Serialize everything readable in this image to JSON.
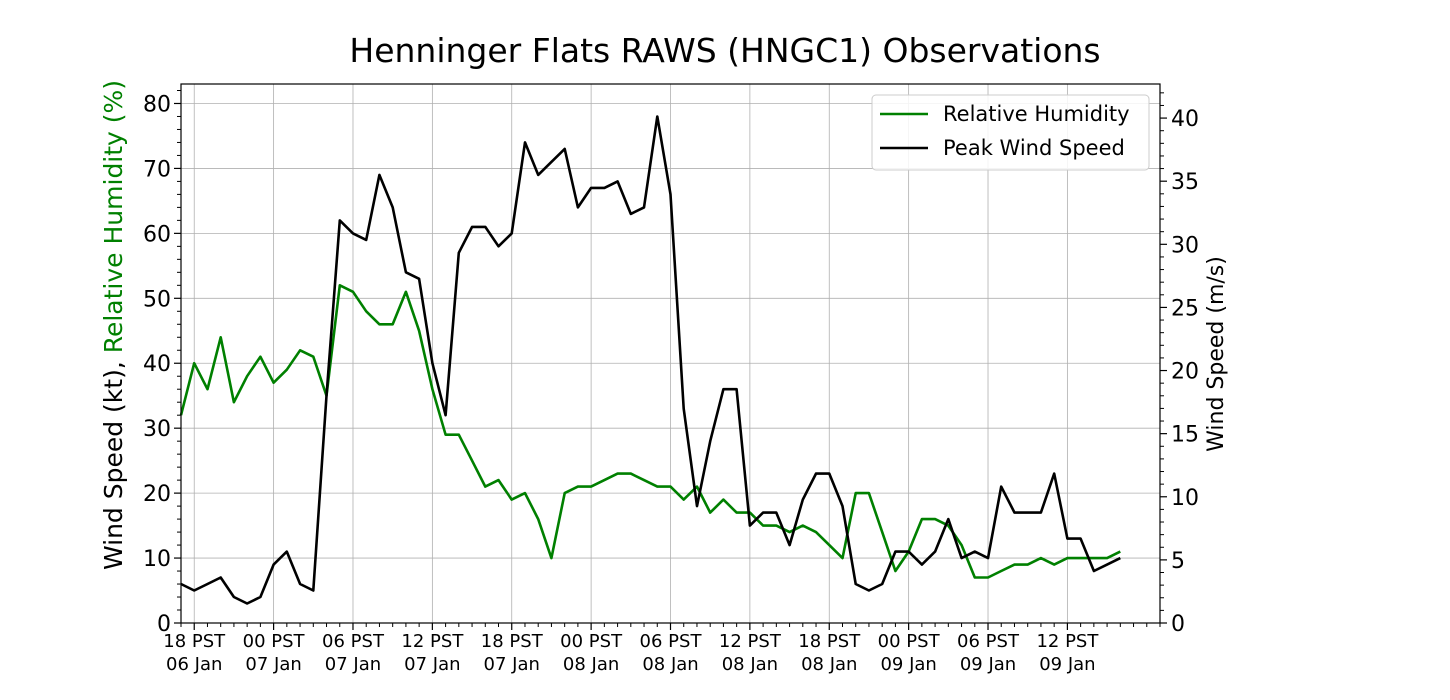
{
  "chart_data": {
    "type": "line",
    "title": "Henninger Flats RAWS (HNGC1) Observations",
    "ylabel_left_prefix": "Wind Speed (kt), ",
    "ylabel_left_colored": "Relative Humidity (%)",
    "ylabel_right": "Wind Speed (m/s)",
    "ylim": [
      0,
      83
    ],
    "y_ticks": [
      0,
      10,
      20,
      30,
      40,
      50,
      60,
      70,
      80
    ],
    "ylim_right_ms": [
      0,
      42.7
    ],
    "y_ticks_right": [
      0,
      5,
      10,
      15,
      20,
      25,
      30,
      35,
      40
    ],
    "x_unit": "hours since 18 PST 06 Jan",
    "xlim": [
      -1,
      73
    ],
    "x_ticks": [
      {
        "x": 0,
        "line1": "18 PST",
        "line2": "06 Jan"
      },
      {
        "x": 6,
        "line1": "00 PST",
        "line2": "07 Jan"
      },
      {
        "x": 12,
        "line1": "06 PST",
        "line2": "07 Jan"
      },
      {
        "x": 18,
        "line1": "12 PST",
        "line2": "07 Jan"
      },
      {
        "x": 24,
        "line1": "18 PST",
        "line2": "07 Jan"
      },
      {
        "x": 30,
        "line1": "00 PST",
        "line2": "08 Jan"
      },
      {
        "x": 36,
        "line1": "06 PST",
        "line2": "08 Jan"
      },
      {
        "x": 42,
        "line1": "12 PST",
        "line2": "08 Jan"
      },
      {
        "x": 48,
        "line1": "18 PST",
        "line2": "08 Jan"
      },
      {
        "x": 54,
        "line1": "00 PST",
        "line2": "09 Jan"
      },
      {
        "x": 60,
        "line1": "06 PST",
        "line2": "09 Jan"
      },
      {
        "x": 66,
        "line1": "12 PST",
        "line2": "09 Jan"
      }
    ],
    "grid": true,
    "legend_position": "top-right",
    "series": [
      {
        "name": "Relative Humidity",
        "color": "#008000",
        "values": [
          [
            -1,
            32
          ],
          [
            0,
            40
          ],
          [
            1,
            36
          ],
          [
            2,
            44
          ],
          [
            3,
            34
          ],
          [
            4,
            38
          ],
          [
            5,
            41
          ],
          [
            6,
            37
          ],
          [
            7,
            39
          ],
          [
            8,
            42
          ],
          [
            9,
            41
          ],
          [
            10,
            35
          ],
          [
            11,
            52
          ],
          [
            12,
            51
          ],
          [
            13,
            48
          ],
          [
            14,
            46
          ],
          [
            15,
            46
          ],
          [
            16,
            51
          ],
          [
            17,
            45
          ],
          [
            18,
            36
          ],
          [
            19,
            29
          ],
          [
            20,
            29
          ],
          [
            21,
            25
          ],
          [
            22,
            21
          ],
          [
            23,
            22
          ],
          [
            24,
            19
          ],
          [
            25,
            20
          ],
          [
            26,
            16
          ],
          [
            27,
            10
          ],
          [
            28,
            20
          ],
          [
            29,
            21
          ],
          [
            30,
            21
          ],
          [
            31,
            22
          ],
          [
            32,
            23
          ],
          [
            33,
            23
          ],
          [
            34,
            22
          ],
          [
            35,
            21
          ],
          [
            36,
            21
          ],
          [
            37,
            19
          ],
          [
            38,
            21
          ],
          [
            39,
            17
          ],
          [
            40,
            19
          ],
          [
            41,
            17
          ],
          [
            42,
            17
          ],
          [
            43,
            15
          ],
          [
            44,
            15
          ],
          [
            45,
            14
          ],
          [
            46,
            15
          ],
          [
            47,
            14
          ],
          [
            48,
            12
          ],
          [
            49,
            10
          ],
          [
            50,
            20
          ],
          [
            51,
            20
          ],
          [
            52,
            14
          ],
          [
            53,
            8
          ],
          [
            54,
            11
          ],
          [
            55,
            16
          ],
          [
            56,
            16
          ],
          [
            57,
            15
          ],
          [
            58,
            12
          ],
          [
            59,
            7
          ],
          [
            60,
            7
          ],
          [
            61,
            8
          ],
          [
            62,
            9
          ],
          [
            63,
            9
          ],
          [
            64,
            10
          ],
          [
            65,
            9
          ],
          [
            66,
            10
          ],
          [
            67,
            10
          ],
          [
            68,
            10
          ],
          [
            69,
            10
          ],
          [
            70,
            11
          ]
        ]
      },
      {
        "name": "Peak Wind Speed",
        "color": "#000000",
        "values": [
          [
            -1,
            6
          ],
          [
            0,
            5
          ],
          [
            1,
            6
          ],
          [
            2,
            7
          ],
          [
            3,
            4
          ],
          [
            4,
            3
          ],
          [
            5,
            4
          ],
          [
            6,
            9
          ],
          [
            7,
            11
          ],
          [
            8,
            6
          ],
          [
            9,
            5
          ],
          [
            10,
            35
          ],
          [
            11,
            62
          ],
          [
            12,
            60
          ],
          [
            13,
            59
          ],
          [
            14,
            69
          ],
          [
            15,
            64
          ],
          [
            16,
            54
          ],
          [
            17,
            53
          ],
          [
            18,
            40
          ],
          [
            19,
            32
          ],
          [
            20,
            57
          ],
          [
            21,
            61
          ],
          [
            22,
            61
          ],
          [
            23,
            58
          ],
          [
            24,
            60
          ],
          [
            25,
            74
          ],
          [
            26,
            69
          ],
          [
            27,
            71
          ],
          [
            28,
            73
          ],
          [
            29,
            64
          ],
          [
            30,
            67
          ],
          [
            31,
            67
          ],
          [
            32,
            68
          ],
          [
            33,
            63
          ],
          [
            34,
            64
          ],
          [
            35,
            78
          ],
          [
            36,
            66
          ],
          [
            37,
            33
          ],
          [
            38,
            18
          ],
          [
            39,
            28
          ],
          [
            40,
            36
          ],
          [
            41,
            36
          ],
          [
            42,
            15
          ],
          [
            43,
            17
          ],
          [
            44,
            17
          ],
          [
            45,
            12
          ],
          [
            46,
            19
          ],
          [
            47,
            23
          ],
          [
            48,
            23
          ],
          [
            49,
            18
          ],
          [
            50,
            6
          ],
          [
            51,
            5
          ],
          [
            52,
            6
          ],
          [
            53,
            11
          ],
          [
            54,
            11
          ],
          [
            55,
            9
          ],
          [
            56,
            11
          ],
          [
            57,
            16
          ],
          [
            58,
            10
          ],
          [
            59,
            11
          ],
          [
            60,
            10
          ],
          [
            61,
            21
          ],
          [
            62,
            17
          ],
          [
            63,
            17
          ],
          [
            64,
            17
          ],
          [
            65,
            23
          ],
          [
            66,
            13
          ],
          [
            67,
            13
          ],
          [
            68,
            8
          ],
          [
            69,
            9
          ],
          [
            70,
            10
          ]
        ]
      }
    ]
  }
}
